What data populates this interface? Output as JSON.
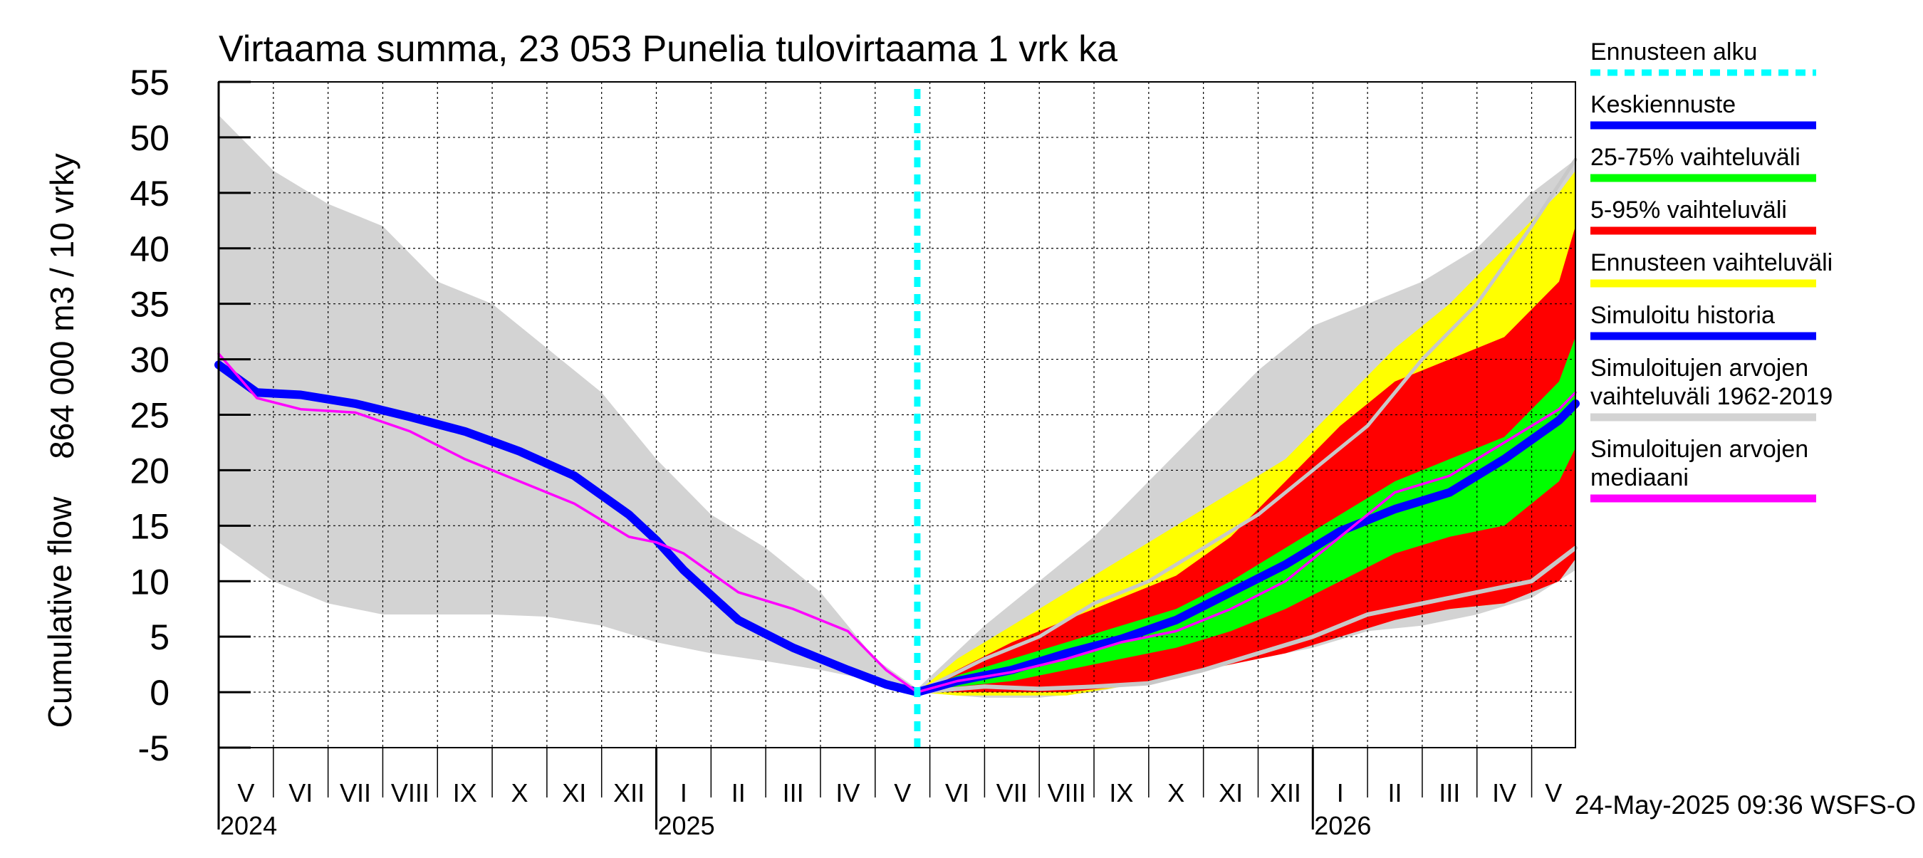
{
  "chart_data": {
    "type": "area",
    "title": "Virtaama summa, 23 053 Punelia tulovirtaama 1 vrk ka",
    "ylabel_line1": "864 000 m3 / 10 vrky",
    "ylabel_line2": "Cumulative flow",
    "ylim": [
      -5,
      55
    ],
    "yticks": [
      -5,
      0,
      5,
      10,
      15,
      20,
      25,
      30,
      35,
      40,
      45,
      50,
      55
    ],
    "x_unit": "month index (0 = 1 May 2024)",
    "xlim": [
      0,
      24.8
    ],
    "forecast_start": 12.77,
    "months": [
      "V",
      "VI",
      "VII",
      "VIII",
      "IX",
      "X",
      "XI",
      "XII",
      "I",
      "II",
      "III",
      "IV",
      "V",
      "VI",
      "VII",
      "VIII",
      "IX",
      "X",
      "XI",
      "XII",
      "I",
      "II",
      "III",
      "IV",
      "V"
    ],
    "years": [
      {
        "label": "2024",
        "at": 0
      },
      {
        "label": "2025",
        "at": 8
      },
      {
        "label": "2026",
        "at": 20
      }
    ],
    "timestamp": "24-May-2025 09:36 WSFS-O",
    "legend": [
      {
        "label": "Ennusteen alku",
        "color": "#00ffff",
        "style": "dashed"
      },
      {
        "label": "Keskiennuste",
        "color": "#0000ff",
        "style": "solid"
      },
      {
        "label": "25-75% vaihteluväli",
        "color": "#00ff00",
        "style": "solid"
      },
      {
        "label": "5-95% vaihteluväli",
        "color": "#ff0000",
        "style": "solid"
      },
      {
        "label": "Ennusteen vaihteluväli",
        "color": "#ffff00",
        "style": "solid"
      },
      {
        "label": "Simuloitu historia",
        "color": "#0000ff",
        "style": "solid"
      },
      {
        "label": "Simuloitujen arvojen vaihteluväli 1962-2019",
        "color": "#d3d3d3",
        "style": "solid",
        "lines": [
          "Simuloitujen arvojen",
          "vaihteluväli 1962-2019"
        ]
      },
      {
        "label": "Simuloitujen arvojen mediaani",
        "color": "#ff00ff",
        "style": "solid",
        "lines": [
          "Simuloitujen arvojen",
          "mediaani"
        ]
      }
    ],
    "series": [
      {
        "name": "Simuloitujen arvojen vaihteluväli 1962-2019 (upper)",
        "color": "#d3d3d3",
        "x": [
          0,
          1,
          2,
          3,
          4,
          5,
          6,
          7,
          8,
          9,
          10,
          11,
          12,
          12.77,
          14,
          15,
          16,
          17,
          18,
          19,
          20,
          21,
          22,
          23,
          24,
          24.8
        ],
        "y": [
          52,
          47,
          44,
          42,
          37,
          35,
          31,
          27,
          21,
          16,
          13,
          9,
          3,
          0.3,
          6,
          10,
          14,
          19,
          24,
          29,
          33,
          35,
          37,
          40,
          45,
          48
        ]
      },
      {
        "name": "Simuloitujen arvojen vaihteluväli 1962-2019 (lower)",
        "color": "#d3d3d3",
        "x": [
          0,
          1,
          2,
          3,
          4,
          5,
          6,
          7,
          8,
          9,
          10,
          11,
          12,
          12.77,
          14,
          15,
          16,
          17,
          18,
          19,
          20,
          21,
          22,
          23,
          24,
          24.8
        ],
        "y": [
          13.5,
          10,
          8,
          7,
          7,
          7,
          6.8,
          6,
          4.5,
          3.5,
          2.8,
          2,
          1,
          0,
          -0.5,
          -0.5,
          0,
          1,
          2,
          3,
          4,
          5.5,
          6,
          7,
          8.5,
          11
        ]
      },
      {
        "name": "Ennusteen vaihteluväli (upper)",
        "color": "#ffff00",
        "x": [
          12.77,
          13.5,
          14.5,
          15.5,
          16.5,
          17.5,
          18.5,
          19.5,
          20.5,
          21.5,
          22.5,
          23.5,
          24.5,
          24.8
        ],
        "y": [
          0,
          3,
          6,
          9,
          12,
          15,
          18,
          21,
          26,
          31,
          35,
          40,
          45,
          47
        ]
      },
      {
        "name": "Ennusteen vaihteluväli (lower)",
        "color": "#ffff00",
        "x": [
          12.77,
          13.5,
          14.5,
          15.5,
          16.5,
          17.5,
          18.5,
          19.5,
          20.5,
          21.5,
          22.5,
          23.5,
          24.5,
          24.8
        ],
        "y": [
          0,
          -0.3,
          -0.3,
          -0.3,
          0.5,
          1.5,
          2.5,
          4,
          5.5,
          7,
          7.5,
          8,
          11,
          13
        ]
      },
      {
        "name": "5-95% vaihteluväli (upper)",
        "color": "#ff0000",
        "x": [
          12.77,
          13.5,
          14.5,
          15.5,
          16.5,
          17.5,
          18.5,
          19.5,
          20.5,
          21.5,
          22.5,
          23.5,
          24.5,
          24.8
        ],
        "y": [
          0,
          2,
          4.5,
          6.5,
          8.5,
          10.5,
          14,
          19,
          24,
          28,
          30,
          32,
          37,
          42
        ]
      },
      {
        "name": "5-95% vaihteluväli (lower)",
        "color": "#ff0000",
        "x": [
          12.77,
          13.5,
          14.5,
          15.5,
          16.5,
          17.5,
          18.5,
          19.5,
          20.5,
          21.5,
          22.5,
          23.5,
          24.5,
          24.8
        ],
        "y": [
          0,
          0,
          0,
          0,
          0.5,
          1.5,
          2.5,
          3.5,
          5,
          6.5,
          7.5,
          8,
          10,
          12
        ]
      },
      {
        "name": "25-75% vaihteluväli (upper)",
        "color": "#00ff00",
        "x": [
          12.77,
          13.5,
          14.5,
          15.5,
          16.5,
          17.5,
          18.5,
          19.5,
          20.5,
          21.5,
          22.5,
          23.5,
          24.5,
          24.8
        ],
        "y": [
          0,
          1.5,
          3,
          4.5,
          6,
          7.5,
          10,
          13,
          16,
          19,
          21,
          23,
          28,
          32
        ]
      },
      {
        "name": "25-75% vaihteluväli (lower)",
        "color": "#00ff00",
        "x": [
          12.77,
          13.5,
          14.5,
          15.5,
          16.5,
          17.5,
          18.5,
          19.5,
          20.5,
          21.5,
          22.5,
          23.5,
          24.5,
          24.8
        ],
        "y": [
          0,
          0.5,
          1,
          2,
          3,
          4,
          5.5,
          7.5,
          10,
          12.5,
          14,
          15,
          19,
          22
        ]
      },
      {
        "name": "Simuloitu historia",
        "color": "#0000ff",
        "x": [
          0,
          0.7,
          1.5,
          2.5,
          3.5,
          4.5,
          5.5,
          6.5,
          7.5,
          8,
          8.5,
          9.5,
          10.5,
          11.5,
          12.2,
          12.77
        ],
        "y": [
          29.5,
          27,
          26.8,
          26,
          24.8,
          23.5,
          21.7,
          19.5,
          16,
          13.7,
          11,
          6.5,
          4,
          2,
          0.7,
          0
        ]
      },
      {
        "name": "Keskiennuste",
        "color": "#0000ff",
        "x": [
          12.77,
          13.5,
          14.5,
          15.5,
          16.5,
          17.5,
          18.5,
          19.5,
          20.5,
          21.5,
          22.5,
          23.5,
          24.5,
          24.8
        ],
        "y": [
          0,
          1,
          2,
          3.5,
          4.8,
          6.5,
          9,
          11.5,
          14.5,
          16.5,
          18,
          21,
          24.5,
          26
        ]
      },
      {
        "name": "Simuloitujen arvojen mediaani",
        "color": "#ff00ff",
        "x": [
          0,
          0.7,
          1.5,
          2.5,
          3.5,
          4.5,
          5.5,
          6.5,
          7.5,
          8,
          8.5,
          9.5,
          10.5,
          11.5,
          12.2,
          12.77,
          13.5,
          14.5,
          15.5,
          16.5,
          17.5,
          18.5,
          19.5,
          20.5,
          21.5,
          22.5,
          23.5,
          24.5,
          24.8
        ],
        "y": [
          30.5,
          26.5,
          25.5,
          25.2,
          23.5,
          21,
          19,
          17,
          14,
          13.5,
          12.5,
          9,
          7.5,
          5.5,
          2,
          0,
          1,
          1.8,
          3,
          4.5,
          5.5,
          7.5,
          10,
          14,
          18,
          19.5,
          22.5,
          25.5,
          27
        ]
      },
      {
        "name": "Simuloitujen arvojen mediaani (grey)",
        "color": "#c8c8c8",
        "x": [
          12.77,
          14,
          15,
          16,
          17,
          18,
          19,
          20,
          21,
          22,
          23,
          24,
          24.8
        ],
        "y": [
          0,
          0.5,
          0.3,
          0.5,
          0.8,
          2,
          3.5,
          5,
          7,
          8,
          9,
          10,
          13
        ]
      },
      {
        "name": "Ennusteen ylä (grey)",
        "color": "#c8c8c8",
        "x": [
          12.77,
          14,
          15,
          16,
          17,
          18,
          19,
          20,
          21,
          22,
          23,
          24,
          24.8
        ],
        "y": [
          0,
          3,
          5,
          8,
          10,
          13,
          16,
          20,
          24,
          30,
          35,
          42,
          48
        ]
      }
    ]
  }
}
